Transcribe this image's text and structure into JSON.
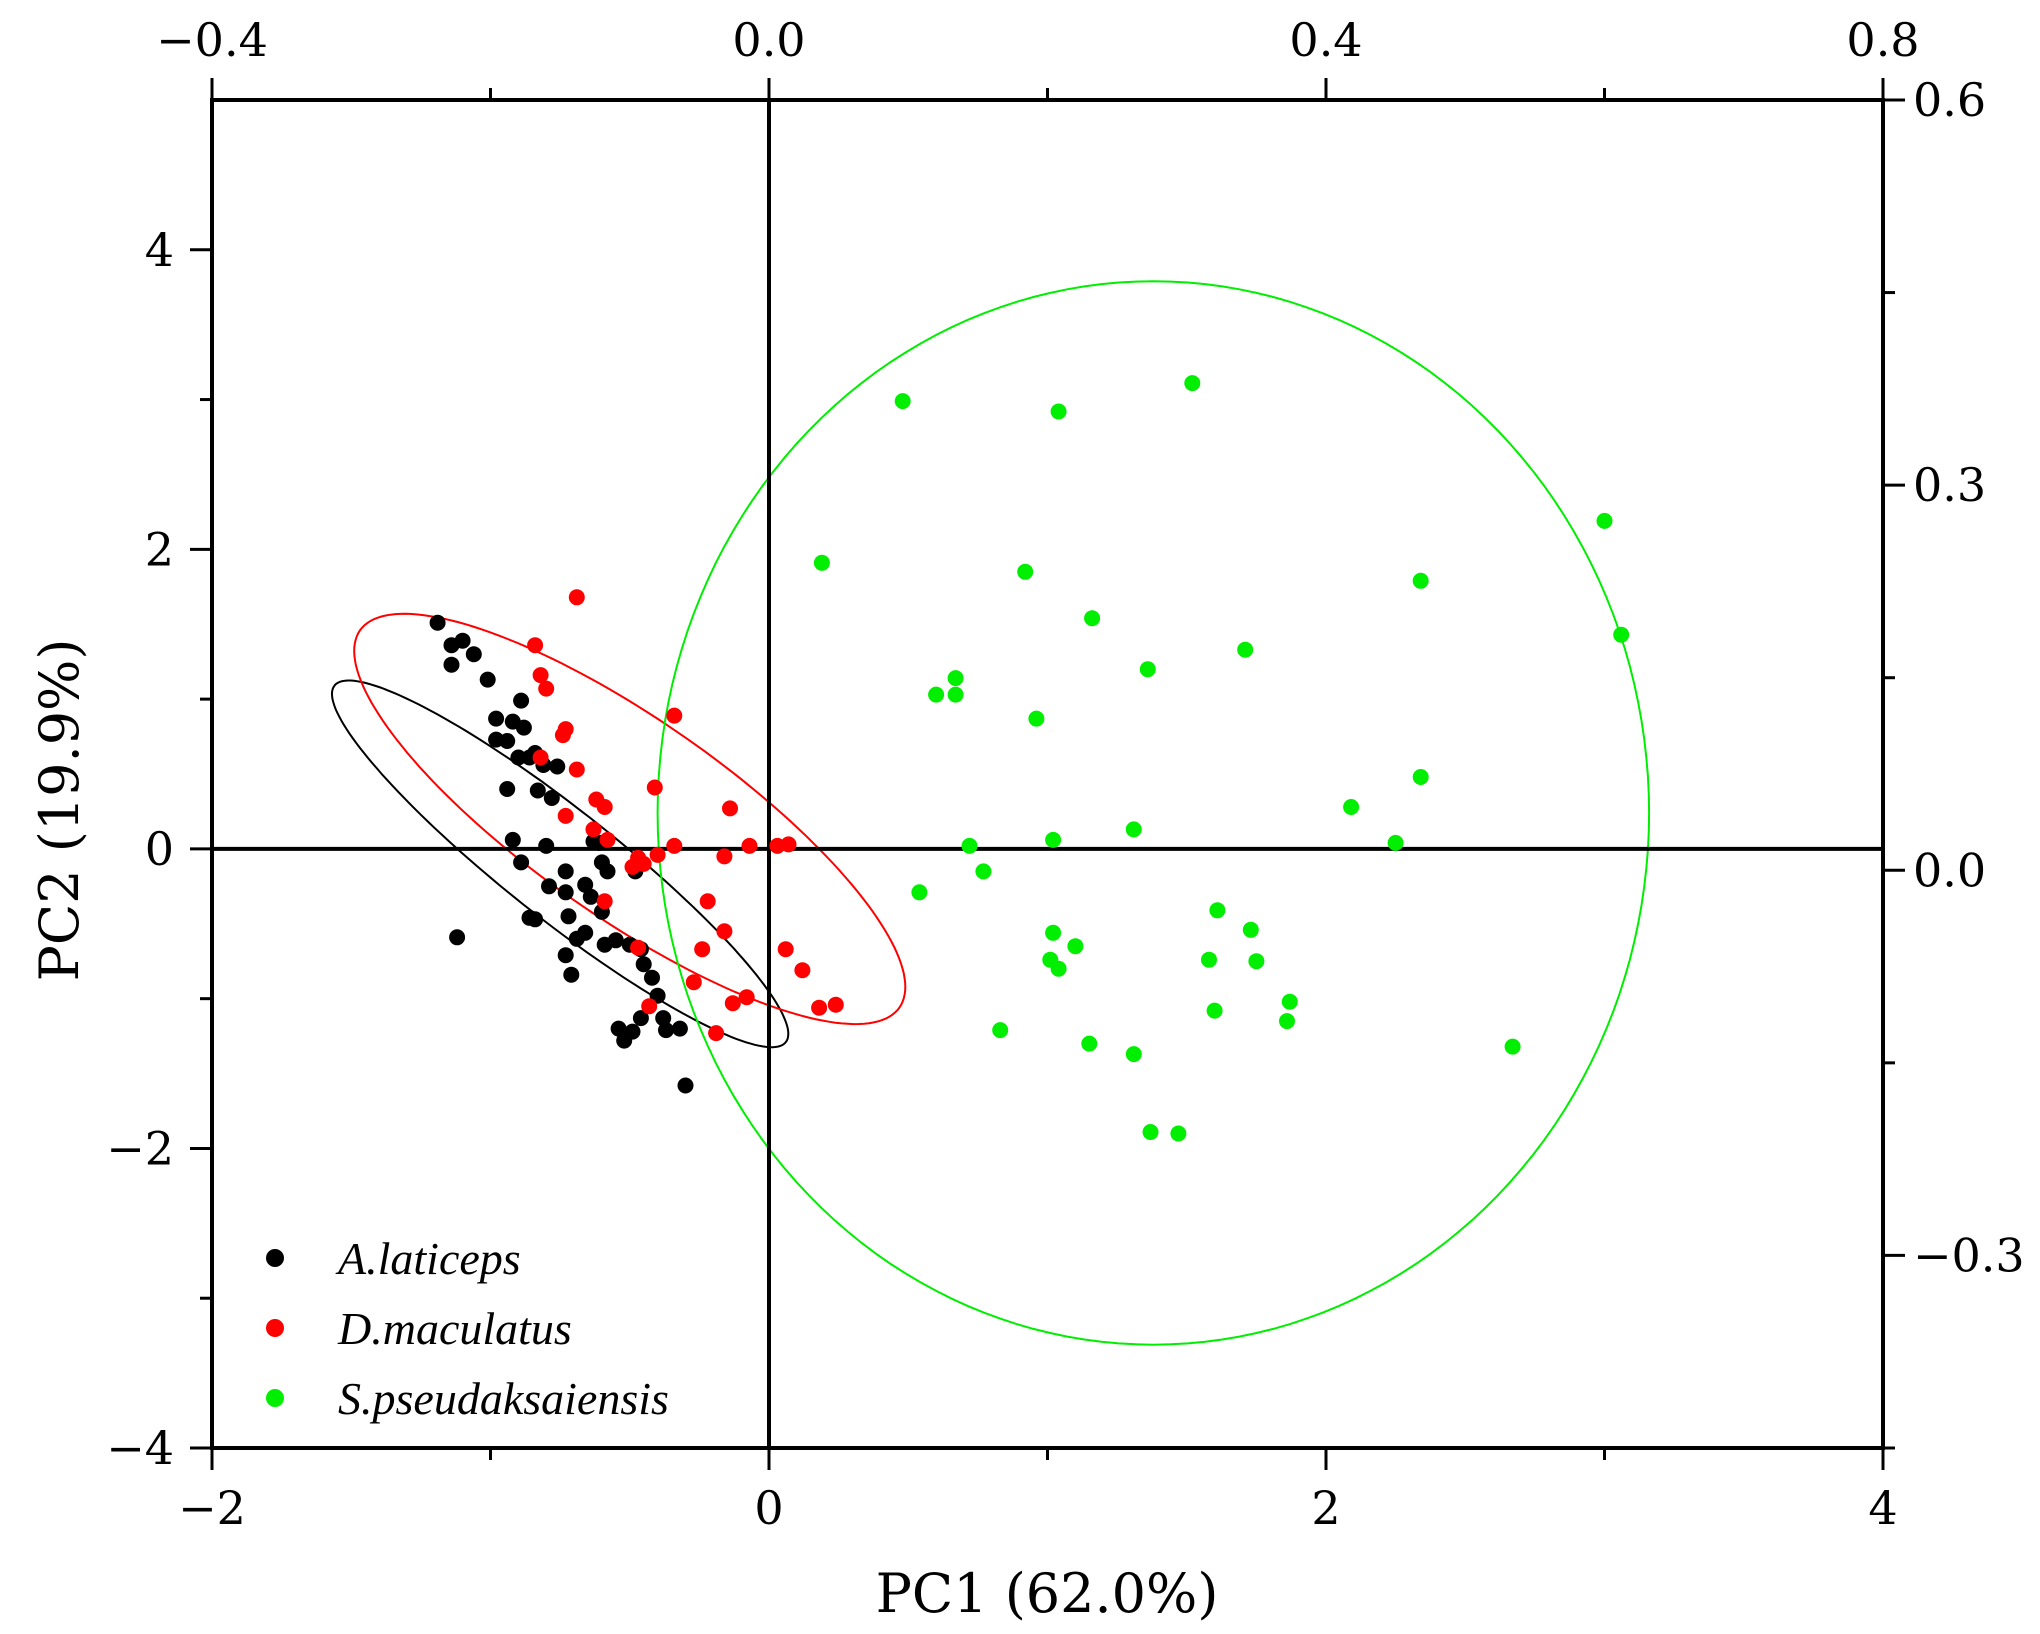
{
  "chart_data": {
    "type": "scatter",
    "title": "",
    "xlabel": "PC1  (62.0%)",
    "ylabel": "PC2  (19.9%)",
    "xlim": [
      -2,
      4
    ],
    "ylim": [
      -4,
      5
    ],
    "x_ticks": [
      -2,
      0,
      2,
      4
    ],
    "x_tick_labels": [
      "−2",
      "0",
      "2",
      "4"
    ],
    "y_ticks": [
      -4,
      -2,
      0,
      2,
      4
    ],
    "y_tick_labels": [
      "−4",
      "−2",
      "0",
      "2",
      "4"
    ],
    "top_axis": {
      "lim": [
        -0.4,
        0.8
      ],
      "ticks": [
        -0.4,
        0.0,
        0.4,
        0.8
      ],
      "tick_labels": [
        "−0.4",
        "0.0",
        "0.4",
        "0.8"
      ]
    },
    "right_axis": {
      "lim": [
        -0.45,
        0.6
      ],
      "ticks": [
        -0.3,
        0.0,
        0.3,
        0.6
      ],
      "tick_labels": [
        "−0.3",
        "0.0",
        "0.3",
        "0.6"
      ]
    },
    "reference_lines": {
      "x": 0,
      "y": 0
    },
    "legend_position": "bottom-left",
    "series": [
      {
        "name": "A.laticeps",
        "color": "#000000",
        "points": [
          [
            -1.19,
            1.51
          ],
          [
            -1.14,
            1.36
          ],
          [
            -1.14,
            1.23
          ],
          [
            -1.1,
            1.39
          ],
          [
            -1.06,
            1.3
          ],
          [
            -1.01,
            1.13
          ],
          [
            -0.98,
            0.87
          ],
          [
            -0.98,
            0.73
          ],
          [
            -0.94,
            0.72
          ],
          [
            -0.92,
            0.85
          ],
          [
            -0.9,
            0.61
          ],
          [
            -0.89,
            0.99
          ],
          [
            -0.88,
            0.81
          ],
          [
            -0.86,
            0.61
          ],
          [
            -0.84,
            0.64
          ],
          [
            -0.81,
            0.56
          ],
          [
            -0.94,
            0.4
          ],
          [
            -0.83,
            0.39
          ],
          [
            -0.78,
            0.34
          ],
          [
            -0.76,
            0.55
          ],
          [
            -0.92,
            0.06
          ],
          [
            -0.89,
            -0.09
          ],
          [
            -0.86,
            -0.46
          ],
          [
            -0.84,
            -0.47
          ],
          [
            -0.8,
            0.02
          ],
          [
            -0.79,
            -0.25
          ],
          [
            -0.73,
            -0.15
          ],
          [
            -0.73,
            -0.29
          ],
          [
            -0.72,
            -0.45
          ],
          [
            -0.69,
            -0.6
          ],
          [
            -0.66,
            -0.24
          ],
          [
            -0.63,
            0.05
          ],
          [
            -0.61,
            0.04
          ],
          [
            -0.6,
            -0.09
          ],
          [
            -0.58,
            -0.15
          ],
          [
            -0.59,
            -0.64
          ],
          [
            -0.55,
            -0.61
          ],
          [
            -0.5,
            -0.64
          ],
          [
            -0.46,
            -0.67
          ],
          [
            -0.48,
            -0.15
          ],
          [
            -0.45,
            -0.77
          ],
          [
            -0.42,
            -0.86
          ],
          [
            -0.4,
            -0.98
          ],
          [
            -0.38,
            -1.13
          ],
          [
            -0.37,
            -1.21
          ],
          [
            -0.32,
            -1.2
          ],
          [
            -0.3,
            -1.58
          ],
          [
            -0.46,
            -1.13
          ],
          [
            -0.49,
            -1.22
          ],
          [
            -0.52,
            -1.28
          ],
          [
            -0.54,
            -1.2
          ],
          [
            -1.12,
            -0.59
          ],
          [
            -0.71,
            -0.84
          ],
          [
            -0.73,
            -0.71
          ],
          [
            -0.64,
            -0.32
          ],
          [
            -0.66,
            -0.56
          ],
          [
            -0.6,
            -0.42
          ]
        ]
      },
      {
        "name": "D.maculatus",
        "color": "#ff0000",
        "points": [
          [
            -0.69,
            1.68
          ],
          [
            -0.84,
            1.36
          ],
          [
            -0.82,
            1.16
          ],
          [
            -0.8,
            1.07
          ],
          [
            -0.73,
            0.8
          ],
          [
            -0.74,
            0.76
          ],
          [
            -0.69,
            0.53
          ],
          [
            -0.82,
            0.61
          ],
          [
            -0.73,
            0.22
          ],
          [
            -0.62,
            0.33
          ],
          [
            -0.59,
            0.28
          ],
          [
            -0.63,
            0.13
          ],
          [
            -0.58,
            0.06
          ],
          [
            -0.47,
            -0.06
          ],
          [
            -0.45,
            -0.1
          ],
          [
            -0.4,
            -0.04
          ],
          [
            -0.34,
            0.02
          ],
          [
            -0.41,
            0.41
          ],
          [
            -0.34,
            0.89
          ],
          [
            -0.14,
            0.27
          ],
          [
            -0.07,
            0.02
          ],
          [
            -0.16,
            -0.05
          ],
          [
            0.03,
            0.02
          ],
          [
            0.07,
            0.03
          ],
          [
            -0.22,
            -0.35
          ],
          [
            -0.16,
            -0.55
          ],
          [
            -0.24,
            -0.67
          ],
          [
            -0.27,
            -0.89
          ],
          [
            -0.13,
            -1.03
          ],
          [
            -0.08,
            -0.99
          ],
          [
            -0.19,
            -1.23
          ],
          [
            -0.47,
            -0.66
          ],
          [
            -0.43,
            -1.05
          ],
          [
            0.06,
            -0.67
          ],
          [
            0.12,
            -0.81
          ],
          [
            0.18,
            -1.06
          ],
          [
            0.24,
            -1.04
          ],
          [
            -0.59,
            -0.35
          ],
          [
            -0.49,
            -0.12
          ]
        ]
      },
      {
        "name": "S.pseudaksaiensis",
        "color": "#00ee00",
        "points": [
          [
            0.19,
            1.91
          ],
          [
            0.48,
            2.99
          ],
          [
            1.04,
            2.92
          ],
          [
            1.52,
            3.11
          ],
          [
            3.0,
            2.19
          ],
          [
            3.06,
            1.43
          ],
          [
            2.34,
            1.79
          ],
          [
            0.92,
            1.85
          ],
          [
            1.16,
            1.54
          ],
          [
            1.36,
            1.2
          ],
          [
            1.71,
            1.33
          ],
          [
            0.6,
            1.03
          ],
          [
            0.67,
            1.14
          ],
          [
            0.67,
            1.03
          ],
          [
            0.96,
            0.87
          ],
          [
            2.34,
            0.48
          ],
          [
            2.09,
            0.28
          ],
          [
            2.25,
            0.04
          ],
          [
            1.31,
            0.13
          ],
          [
            1.02,
            0.06
          ],
          [
            0.72,
            0.02
          ],
          [
            0.77,
            -0.15
          ],
          [
            0.54,
            -0.29
          ],
          [
            1.61,
            -0.41
          ],
          [
            1.73,
            -0.54
          ],
          [
            1.02,
            -0.56
          ],
          [
            1.1,
            -0.65
          ],
          [
            1.01,
            -0.74
          ],
          [
            1.04,
            -0.8
          ],
          [
            1.58,
            -0.74
          ],
          [
            1.75,
            -0.75
          ],
          [
            1.87,
            -1.02
          ],
          [
            1.86,
            -1.15
          ],
          [
            1.6,
            -1.08
          ],
          [
            0.83,
            -1.21
          ],
          [
            1.15,
            -1.3
          ],
          [
            1.31,
            -1.37
          ],
          [
            2.67,
            -1.32
          ],
          [
            1.37,
            -1.89
          ],
          [
            1.47,
            -1.9
          ]
        ]
      }
    ],
    "ellipses": [
      {
        "series": "A.laticeps",
        "color": "#000000",
        "center": [
          -0.75,
          -0.1
        ],
        "rx": 1.45,
        "ry": 0.26,
        "angle_deg": -57
      },
      {
        "series": "D.maculatus",
        "color": "#ff0000",
        "center": [
          -0.5,
          0.2
        ],
        "rx": 1.62,
        "ry": 0.48,
        "angle_deg": -56
      },
      {
        "series": "S.pseudaksaiensis",
        "color": "#00ee00",
        "center": [
          1.38,
          0.24
        ],
        "rx": 1.78,
        "ry": 3.55,
        "angle_deg": 0
      }
    ]
  }
}
